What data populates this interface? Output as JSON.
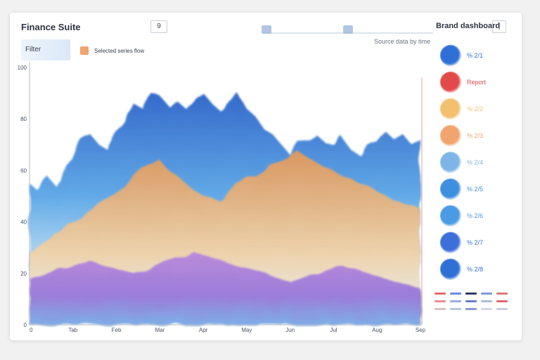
{
  "header": {
    "title": "Finance Suite",
    "control_value": "9",
    "brand": "Brand dashboard",
    "brand_button": "|",
    "subtitle": "Source data by time"
  },
  "filter": {
    "label": "Filter"
  },
  "legend_top": {
    "label": "Selected series flow"
  },
  "side_legend": {
    "items": [
      {
        "label": "% 2/1",
        "color": "#2f6fd6"
      },
      {
        "label": "Report",
        "color": "#e24a4a"
      },
      {
        "label": "% 2/2",
        "color": "#f2c06e"
      },
      {
        "label": "% 2/3",
        "color": "#f0a46e"
      },
      {
        "label": "% 2/4",
        "color": "#7fb4e6"
      },
      {
        "label": "% 2/5",
        "color": "#3f8fe0"
      },
      {
        "label": "% 2/6",
        "color": "#4a9ae4"
      },
      {
        "label": "% 2/7",
        "color": "#3d6fda"
      },
      {
        "label": "% 2/8",
        "color": "#2f6fd6"
      }
    ]
  },
  "chart_data": {
    "type": "area",
    "title": "",
    "xlabel": "",
    "ylabel": "",
    "ylim": [
      0,
      100
    ],
    "grid": false,
    "legend": "right",
    "y_ticks": [
      "0",
      "20",
      "40",
      "60",
      "80",
      "100"
    ],
    "x_ticks": [
      "0",
      "Tab",
      "Feb",
      "Mar",
      "Apr",
      "May",
      "Jun",
      "Jul",
      "Aug",
      "Sep"
    ],
    "x": [
      0,
      1,
      2,
      3,
      4,
      5,
      6,
      7,
      8,
      9,
      10,
      11,
      12,
      13,
      14,
      15,
      16,
      17,
      18,
      19,
      20,
      21,
      22,
      23,
      24,
      25,
      26,
      27,
      28,
      29,
      30,
      31,
      32,
      33,
      34,
      35,
      36,
      37,
      38,
      39,
      40,
      41,
      42,
      43,
      44,
      45
    ],
    "series": [
      {
        "color": "#1f4fae",
        "values": [
          55,
          52,
          58,
          54,
          61,
          66,
          72,
          74,
          70,
          68,
          75,
          80,
          86,
          84,
          90,
          89,
          85,
          87,
          84,
          88,
          90,
          86,
          83,
          87,
          90,
          84,
          81,
          76,
          74,
          70,
          66,
          71,
          72,
          74,
          71,
          70,
          73,
          68,
          66,
          70,
          71,
          75,
          72,
          74,
          70,
          72
        ]
      },
      {
        "color": "#f0a46e",
        "values": [
          28,
          30,
          33,
          36,
          38,
          40,
          42,
          45,
          47,
          49,
          52,
          55,
          58,
          60,
          62,
          64,
          60,
          58,
          55,
          52,
          50,
          49,
          48,
          52,
          55,
          57,
          58,
          60,
          62,
          64,
          66,
          67,
          65,
          63,
          61,
          60,
          58,
          57,
          55,
          54,
          52,
          50,
          48,
          47,
          46,
          45
        ]
      },
      {
        "color": "#a26fd6",
        "values": [
          18,
          19,
          20,
          21,
          22,
          23,
          24,
          25,
          24,
          23,
          22,
          21,
          20,
          21,
          22,
          24,
          25,
          26,
          27,
          28,
          27,
          26,
          25,
          24,
          23,
          22,
          21,
          20,
          19,
          18,
          17,
          18,
          19,
          20,
          21,
          22,
          23,
          22,
          21,
          20,
          19,
          18,
          17,
          16,
          15,
          14
        ]
      }
    ]
  }
}
